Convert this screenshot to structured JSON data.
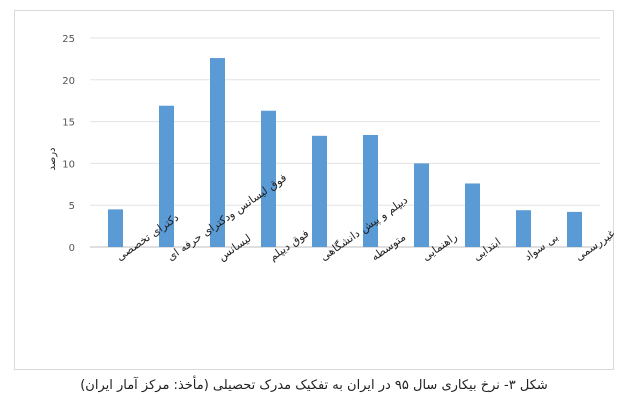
{
  "chart_data": {
    "type": "bar",
    "ylabel": "درصد",
    "ylim": [
      0,
      25
    ],
    "yticks": [
      "0",
      "5",
      "10",
      "15",
      "20",
      "25"
    ],
    "grid": true,
    "bar_color": "#5b9bd5",
    "categories": [
      "دکترای تخصصی",
      "فوق لیسانس ودکترای حرفه ای",
      "لیسانس",
      "فوق دیپلم",
      "دیپلم و پیش دانشگاهی",
      "متوسطه",
      "راهنمایی",
      "ابتدایی",
      "بی سواد",
      "سوادآموزی و غیررسمی"
    ],
    "values": [
      4.5,
      16.9,
      22.6,
      16.3,
      13.3,
      13.4,
      10.0,
      7.6,
      4.4,
      4.2
    ]
  },
  "caption": "شکل ۳- نرخ بیکاری سال ۹۵ در ایران به تفکیک مدرک تحصیلی (مأخذ: مرکز آمار ایران)"
}
